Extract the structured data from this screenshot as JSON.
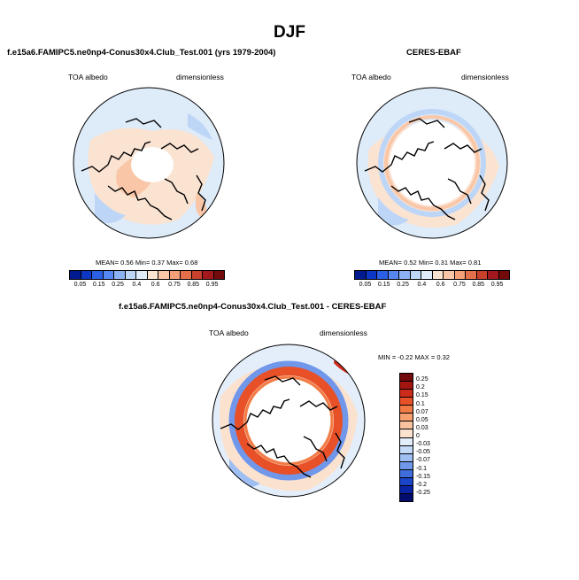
{
  "page": {
    "title": "DJF"
  },
  "panels": {
    "model": {
      "title": "f.e15a6.FAMIPC5.ne0np4-Conus30x4.Club_Test.001 (yrs 1979-2004)",
      "left_label": "TOA albedo",
      "right_label": "dimensionless",
      "mean_label": "MEAN=",
      "mean": "0.56",
      "min_label": "Min=",
      "min": "0.37",
      "max_label": "Max=",
      "max": "0.68"
    },
    "obs": {
      "title": "CERES-EBAF",
      "left_label": "TOA albedo",
      "right_label": "dimensionless",
      "mean_label": "MEAN=",
      "mean": "0.52",
      "min_label": "Min=",
      "min": "0.31",
      "max_label": "Max=",
      "max": "0.81"
    },
    "diff": {
      "title": "f.e15a6.FAMIPC5.ne0np4-Conus30x4.Club_Test.001 - CERES-EBAF",
      "left_label": "TOA albedo",
      "right_label": "dimensionless",
      "min_label": "MIN =",
      "min": "-0.22",
      "max_label": "MAX =",
      "max": "0.32"
    }
  },
  "colorbars": {
    "abs_colors": [
      "#001b8f",
      "#0d36c4",
      "#2b5fe6",
      "#5686f2",
      "#8cb2f5",
      "#bdd6f7",
      "#deebf9",
      "#fbe3d2",
      "#f9c7a8",
      "#f3a07a",
      "#e56f4b",
      "#c9402d",
      "#a3181c",
      "#730a0c"
    ],
    "abs_ticks": [
      "0.05",
      "0.15",
      "0.25",
      "0.4",
      "0.6",
      "0.75",
      "0.85",
      "0.95"
    ],
    "diff_colors": [
      "#730a0c",
      "#a31510",
      "#cc2a1a",
      "#e85028",
      "#f27a45",
      "#f6a070",
      "#f9c3a0",
      "#fbe2cf",
      "#e4eefa",
      "#c4daf6",
      "#9fbef2",
      "#7097ea",
      "#3f6ddc",
      "#1a45c8",
      "#0b24a6",
      "#020d6e"
    ],
    "diff_ticks": [
      "0.25",
      "0.2",
      "0.15",
      "0.1",
      "0.07",
      "0.05",
      "0.03",
      "0",
      "-0.03",
      "-0.05",
      "-0.07",
      "-0.1",
      "-0.15",
      "-0.2",
      "-0.25"
    ]
  }
}
